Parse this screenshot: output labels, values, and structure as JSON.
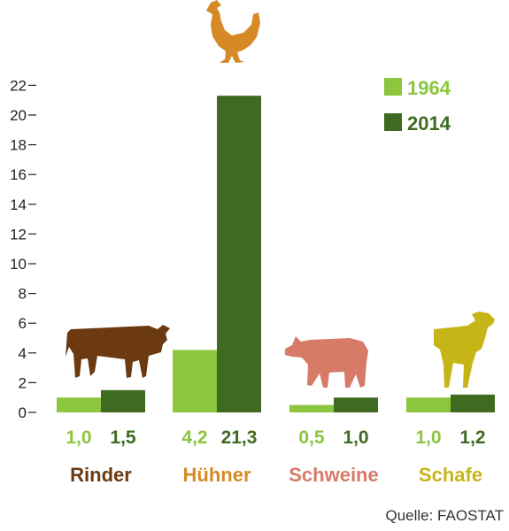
{
  "chart_data": {
    "type": "bar",
    "categories": [
      "Rinder",
      "Hühner",
      "Schweine",
      "Schafe"
    ],
    "series": [
      {
        "name": "1964",
        "values": [
          1.0,
          4.2,
          0.5,
          1.0
        ],
        "labels": [
          "1,0",
          "4,2",
          "0,5",
          "1,0"
        ],
        "color": "#8cc63f"
      },
      {
        "name": "2014",
        "values": [
          1.5,
          21.3,
          1.0,
          1.2
        ],
        "labels": [
          "1,5",
          "21,3",
          "1,0",
          "1,2"
        ],
        "color": "#3f6b21"
      }
    ],
    "category_colors": [
      "#6b3a10",
      "#d58a26",
      "#d77a67",
      "#c7b518"
    ],
    "category_icons": [
      "cow-icon",
      "chicken-icon",
      "pig-icon",
      "sheep-icon"
    ],
    "yticks": [
      0,
      2,
      4,
      6,
      8,
      10,
      12,
      14,
      16,
      18,
      20,
      22
    ],
    "ylim": [
      0,
      22
    ],
    "grid": false,
    "legend": "top-right",
    "source": "Quelle: FAOSTAT"
  }
}
